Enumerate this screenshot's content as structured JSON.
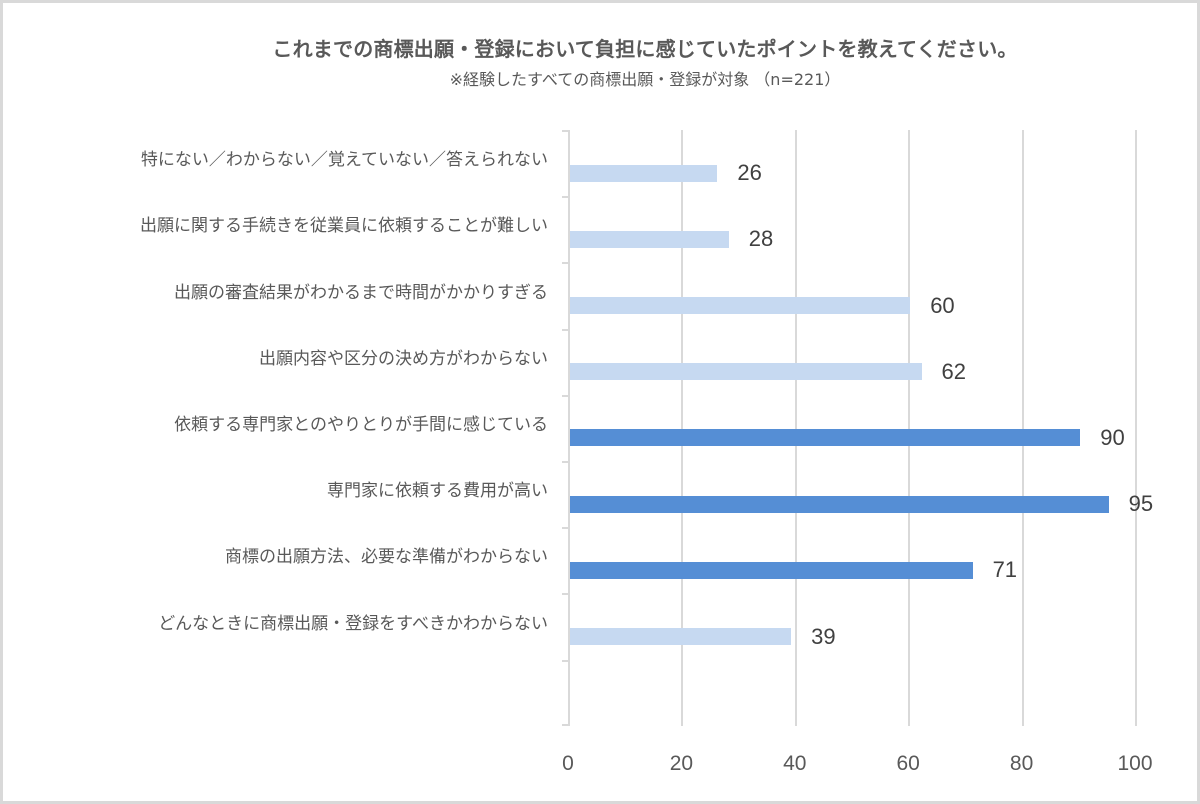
{
  "chart_data": {
    "type": "bar",
    "orientation": "horizontal",
    "title": "これまでの商標出願・登録において負担に感じていたポイントを教えてください。",
    "subtitle": "※経験したすべての商標出願・登録が対象 （n=221）",
    "categories": [
      "特にない／わからない／覚えていない／答えられない",
      "出願に関する手続きを従業員に依頼することが難しい",
      "出願の審査結果がわかるまで時間がかかりすぎる",
      "出願内容や区分の決め方がわからない",
      "依頼する専門家とのやりとりが手間に感じている",
      "専門家に依頼する費用が高い",
      "商標の出願方法、必要な準備がわからない",
      "どんなときに商標出願・登録をすべきかわからない"
    ],
    "values": [
      26,
      28,
      60,
      62,
      90,
      95,
      71,
      39
    ],
    "highlighted": [
      false,
      false,
      false,
      false,
      true,
      true,
      true,
      false
    ],
    "colors": {
      "highlight": "#558ED5",
      "normal": "#C6D9F1",
      "grid": "#D9D9D9"
    },
    "xlabel": "",
    "ylabel": "",
    "xlim": [
      0,
      100
    ],
    "xticks": [
      "0",
      "20",
      "40",
      "60",
      "80",
      "100"
    ],
    "grid": true,
    "legend": null,
    "data_labels": [
      "26",
      "28",
      "60",
      "62",
      "90",
      "95",
      "71",
      "39"
    ]
  }
}
